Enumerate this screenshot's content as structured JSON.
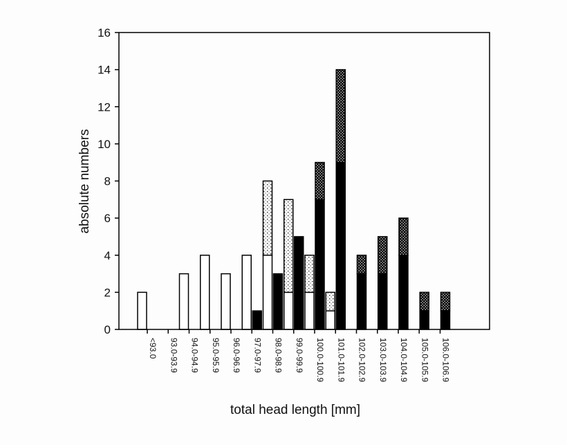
{
  "chart_data": {
    "type": "bar",
    "xlabel": "total head length [mm]",
    "ylabel": "absolute numbers",
    "ylim": [
      0,
      16
    ],
    "yticks": [
      "0",
      "2",
      "4",
      "6",
      "8",
      "10",
      "12",
      "14",
      "16"
    ],
    "grid": false,
    "legend": "none",
    "categories": [
      "<93.0",
      "93.0-93.9",
      "94.0-94.9",
      "95.0-95.9",
      "96.0-96.9",
      "97.0-97.9",
      "98.0-98.9",
      "99.0-99.9",
      "100.0-100.9",
      "101.0-101.9",
      "102.0-102.9",
      "103.0-103.9",
      "104.0-104.9",
      "105.0-105.9",
      "106.0-106.9"
    ],
    "series": [
      {
        "group": "left",
        "fill": "white",
        "values": [
          2,
          0,
          3,
          4,
          3,
          4,
          4,
          2,
          2,
          1,
          0,
          0,
          0,
          0,
          0
        ]
      },
      {
        "group": "left",
        "fill": "light-dots",
        "values": [
          0,
          0,
          0,
          0,
          0,
          0,
          4,
          5,
          2,
          1,
          0,
          0,
          0,
          0,
          0
        ]
      },
      {
        "group": "right",
        "fill": "black",
        "values": [
          0,
          0,
          0,
          0,
          0,
          1,
          3,
          5,
          7,
          9,
          3,
          3,
          4,
          1,
          1
        ]
      },
      {
        "group": "right",
        "fill": "dense-dots",
        "values": [
          0,
          0,
          0,
          0,
          0,
          0,
          0,
          0,
          2,
          5,
          1,
          2,
          2,
          1,
          1
        ]
      }
    ],
    "colors": {
      "white": "#ffffff",
      "black": "#000000",
      "outline": "#000000"
    }
  }
}
